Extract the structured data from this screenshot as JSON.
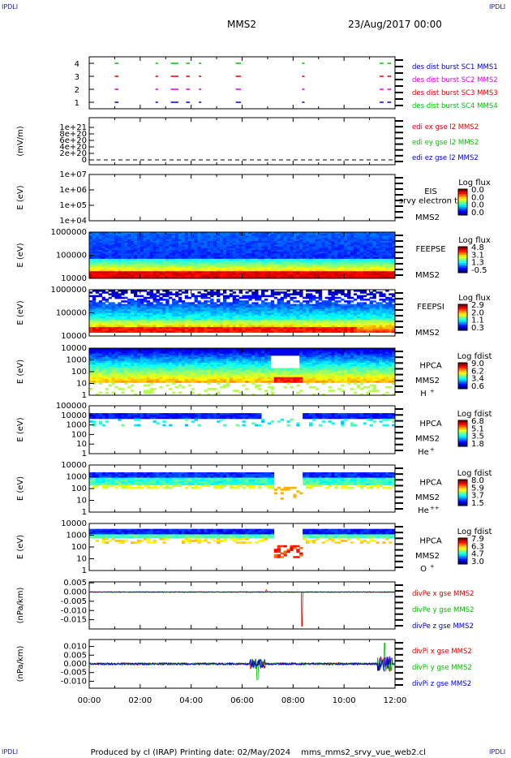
{
  "header": {
    "corner_tl": "IPDLI",
    "corner_tr": "IPDLI",
    "corner_bl": "IPDLI",
    "corner_br": "IPDLI",
    "spacecraft": "MMS2",
    "date": "23/Aug/2017 00:00"
  },
  "footer": {
    "produced": "Produced by cl (IRAP)",
    "printing": "Printing date: 02/May/2024",
    "script": "mms_mms2_srvy_vue_web2.cl"
  },
  "colors": {
    "red": "#e00000",
    "green": "#00c000",
    "blue": "#0000d0",
    "magenta": "#e000e0"
  },
  "chart_data": [
    {
      "type": "line",
      "id": "burst",
      "ylabel": "",
      "ylim": [
        0.5,
        4.5
      ],
      "yticks": [
        "1",
        "2",
        "3",
        "4"
      ],
      "legend": [
        {
          "text": "des dist burst SC1 MMS1",
          "color": "#0000d0"
        },
        {
          "text": "des dist burst SC2 MMS2",
          "color": "#e000e0"
        },
        {
          "text": "des dist burst SC3 MMS3",
          "color": "#e00000"
        },
        {
          "text": "des dist burst SC4 MMS4",
          "color": "#00c000"
        }
      ],
      "segments": [
        [
          1.0,
          1.15
        ],
        [
          2.6,
          2.7
        ],
        [
          3.2,
          3.5
        ],
        [
          3.8,
          3.95
        ],
        [
          4.3,
          4.4
        ],
        [
          5.75,
          5.95
        ],
        [
          8.35,
          8.45
        ],
        [
          11.4,
          11.55
        ],
        [
          11.7,
          11.85
        ]
      ]
    },
    {
      "type": "line",
      "id": "edi",
      "ylabel": "(mV/m)",
      "ylim": [
        0,
        12
      ],
      "yticks": [
        "0",
        "2e+20",
        "4e+20",
        "6e+20",
        "8e+20",
        "1e+21"
      ],
      "legend": [
        {
          "text": "edi ex gse l2 MMS2",
          "color": "#e00000"
        },
        {
          "text": "edi ey gse l2 MMS2",
          "color": "#00c000"
        },
        {
          "text": "edi ez gse l2 MMS2",
          "color": "#0000d0"
        }
      ]
    },
    {
      "type": "heatmap",
      "id": "eis",
      "ylabel": "E (eV)",
      "yticks": [
        "1e+04",
        "1e+05",
        "1e+06",
        "1e+07"
      ],
      "label_top": "EIS",
      "label_mid": "srvy electron to",
      "label_bottom": "MMS2",
      "colorbar_title": "Log flux",
      "colorbar_ticks": [
        "0.0",
        "0.0",
        "0.0",
        "0.0"
      ]
    },
    {
      "type": "heatmap",
      "id": "feepse",
      "ylabel": "E (eV)",
      "yticks": [
        "10000",
        "100000",
        "1000000"
      ],
      "label_top": "FEEPSE",
      "label_bottom": "MMS2",
      "colorbar_title": "Log flux",
      "colorbar_ticks": [
        "4.8",
        "3.1",
        "1.3",
        "-0.5"
      ]
    },
    {
      "type": "heatmap",
      "id": "feepsi",
      "ylabel": "E (eV)",
      "yticks": [
        "10000",
        "100000",
        "1000000"
      ],
      "label_top": "FEEPSI",
      "label_bottom": "MMS2",
      "colorbar_title": "Log flux",
      "colorbar_ticks": [
        "2.9",
        "2.0",
        "1.1",
        "0.3"
      ]
    },
    {
      "type": "heatmap",
      "id": "hpca_h",
      "ylabel": "E (eV)",
      "yticks": [
        "1",
        "10",
        "100",
        "1000",
        "10000"
      ],
      "label_top": "HPCA",
      "label_bottom": "MMS2",
      "species": "H",
      "species_charge": "+",
      "colorbar_title": "Log fdist",
      "colorbar_ticks": [
        "9.0",
        "6.2",
        "3.4",
        "0.6"
      ]
    },
    {
      "type": "heatmap",
      "id": "hpca_he",
      "ylabel": "E (eV)",
      "yticks": [
        "1",
        "10",
        "100",
        "1000",
        "10000",
        "100000"
      ],
      "label_top": "HPCA",
      "label_bottom": "MMS2",
      "species": "He",
      "species_charge": "+",
      "colorbar_title": "Log fdist",
      "colorbar_ticks": [
        "6.8",
        "5.1",
        "3.5",
        "1.8"
      ]
    },
    {
      "type": "heatmap",
      "id": "hpca_hepp",
      "ylabel": "E (eV)",
      "yticks": [
        "1",
        "10",
        "100",
        "1000",
        "10000"
      ],
      "label_top": "HPCA",
      "label_bottom": "MMS2",
      "species": "He",
      "species_charge": "++",
      "colorbar_title": "Log fdist",
      "colorbar_ticks": [
        "8.0",
        "5.9",
        "3.7",
        "1.5"
      ]
    },
    {
      "type": "heatmap",
      "id": "hpca_o",
      "ylabel": "E (eV)",
      "yticks": [
        "1",
        "10",
        "100",
        "1000",
        "10000"
      ],
      "label_top": "HPCA",
      "label_bottom": "MMS2",
      "species": "O",
      "species_charge": "+",
      "colorbar_title": "Log fdist",
      "colorbar_ticks": [
        "7.9",
        "6.3",
        "4.7",
        "3.0"
      ]
    },
    {
      "type": "line",
      "id": "divpe",
      "ylabel": "(nPa/km)",
      "ylim": [
        -0.02,
        0.0055
      ],
      "yticks": [
        {
          "v": 0.005,
          "t": "0.005"
        },
        {
          "v": 0.0,
          "t": "0.000"
        },
        {
          "v": -0.005,
          "t": "-0.005"
        },
        {
          "v": -0.01,
          "t": "-0.010"
        },
        {
          "v": -0.015,
          "t": "-0.015"
        }
      ],
      "legend": [
        {
          "text": "divPe x gse MMS2",
          "color": "#e00000"
        },
        {
          "text": "divPe y gse MMS2",
          "color": "#00c000"
        },
        {
          "text": "divPe z gse MMS2",
          "color": "#0000d0"
        }
      ]
    },
    {
      "type": "line",
      "id": "divpi",
      "ylabel": "(nPa/km)",
      "ylim": [
        -0.014,
        0.014
      ],
      "yticks": [
        {
          "v": 0.01,
          "t": "0.010"
        },
        {
          "v": 0.005,
          "t": "0.005"
        },
        {
          "v": 0.0,
          "t": "0.000"
        },
        {
          "v": -0.005,
          "t": "-0.005"
        },
        {
          "v": -0.01,
          "t": "-0.010"
        }
      ],
      "legend": [
        {
          "text": "divPi x gse MMS2",
          "color": "#e00000"
        },
        {
          "text": "divPi y gse MMS2",
          "color": "#00c000"
        },
        {
          "text": "divPi z gse MMS2",
          "color": "#0000d0"
        }
      ]
    }
  ],
  "x_axis": {
    "ticks": [
      "00:00",
      "02:00",
      "04:00",
      "06:00",
      "08:00",
      "10:00",
      "12:00"
    ],
    "xlim": [
      0,
      12
    ]
  }
}
